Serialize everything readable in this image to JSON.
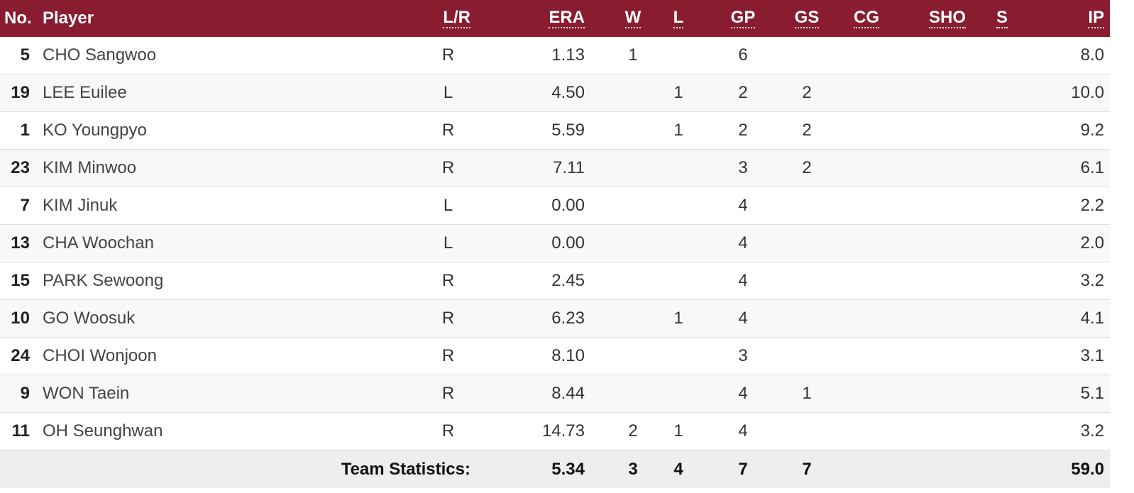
{
  "header": {
    "no": "No.",
    "player": "Player",
    "lr": "L/R",
    "era": "ERA",
    "w": "W",
    "l": "L",
    "gp": "GP",
    "gs": "GS",
    "cg": "CG",
    "sho": "SHO",
    "s": "S",
    "ip": "IP"
  },
  "rows": [
    {
      "no": "5",
      "player": "CHO Sangwoo",
      "lr": "R",
      "era": "1.13",
      "w": "1",
      "l": "",
      "gp": "6",
      "gs": "",
      "cg": "",
      "sho": "",
      "s": "",
      "ip": "8.0"
    },
    {
      "no": "19",
      "player": "LEE Euilee",
      "lr": "L",
      "era": "4.50",
      "w": "",
      "l": "1",
      "gp": "2",
      "gs": "2",
      "cg": "",
      "sho": "",
      "s": "",
      "ip": "10.0"
    },
    {
      "no": "1",
      "player": "KO Youngpyo",
      "lr": "R",
      "era": "5.59",
      "w": "",
      "l": "1",
      "gp": "2",
      "gs": "2",
      "cg": "",
      "sho": "",
      "s": "",
      "ip": "9.2"
    },
    {
      "no": "23",
      "player": "KIM Minwoo",
      "lr": "R",
      "era": "7.11",
      "w": "",
      "l": "",
      "gp": "3",
      "gs": "2",
      "cg": "",
      "sho": "",
      "s": "",
      "ip": "6.1"
    },
    {
      "no": "7",
      "player": "KIM Jinuk",
      "lr": "L",
      "era": "0.00",
      "w": "",
      "l": "",
      "gp": "4",
      "gs": "",
      "cg": "",
      "sho": "",
      "s": "",
      "ip": "2.2"
    },
    {
      "no": "13",
      "player": "CHA Woochan",
      "lr": "L",
      "era": "0.00",
      "w": "",
      "l": "",
      "gp": "4",
      "gs": "",
      "cg": "",
      "sho": "",
      "s": "",
      "ip": "2.0"
    },
    {
      "no": "15",
      "player": "PARK Sewoong",
      "lr": "R",
      "era": "2.45",
      "w": "",
      "l": "",
      "gp": "4",
      "gs": "",
      "cg": "",
      "sho": "",
      "s": "",
      "ip": "3.2"
    },
    {
      "no": "10",
      "player": "GO Woosuk",
      "lr": "R",
      "era": "6.23",
      "w": "",
      "l": "1",
      "gp": "4",
      "gs": "",
      "cg": "",
      "sho": "",
      "s": "",
      "ip": "4.1"
    },
    {
      "no": "24",
      "player": "CHOI Wonjoon",
      "lr": "R",
      "era": "8.10",
      "w": "",
      "l": "",
      "gp": "3",
      "gs": "",
      "cg": "",
      "sho": "",
      "s": "",
      "ip": "3.1"
    },
    {
      "no": "9",
      "player": "WON Taein",
      "lr": "R",
      "era": "8.44",
      "w": "",
      "l": "",
      "gp": "4",
      "gs": "1",
      "cg": "",
      "sho": "",
      "s": "",
      "ip": "5.1"
    },
    {
      "no": "11",
      "player": "OH Seunghwan",
      "lr": "R",
      "era": "14.73",
      "w": "2",
      "l": "1",
      "gp": "4",
      "gs": "",
      "cg": "",
      "sho": "",
      "s": "",
      "ip": "3.2"
    }
  ],
  "team": {
    "label": "Team Statistics:",
    "era": "5.34",
    "w": "3",
    "l": "4",
    "gp": "7",
    "gs": "7",
    "ip": "59.0"
  },
  "colors": {
    "header_bg": "#8a1c30",
    "footer_bg": "#eeeeee"
  }
}
